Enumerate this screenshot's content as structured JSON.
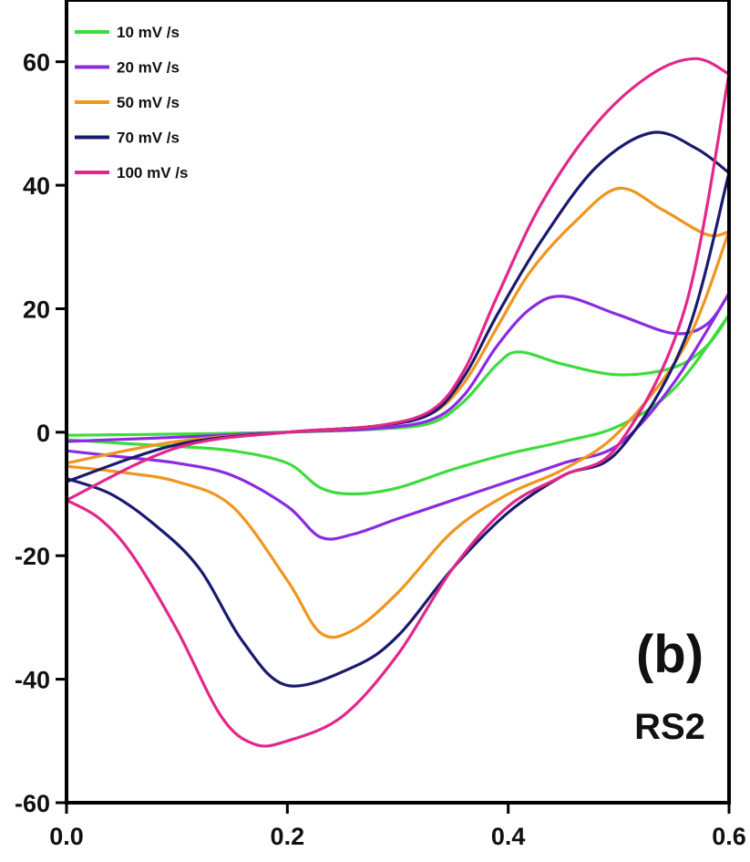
{
  "chart_data": {
    "type": "line",
    "title": "",
    "xlabel": "",
    "ylabel": "",
    "xlim": [
      0.0,
      0.6
    ],
    "ylim": [
      -60,
      70
    ],
    "x_ticks": [
      0.0,
      0.2,
      0.4,
      0.6
    ],
    "x_tick_labels": [
      "0.0",
      "0.2",
      "0.4",
      "0.6"
    ],
    "y_ticks": [
      -60,
      -40,
      -20,
      0,
      20,
      40,
      60
    ],
    "y_tick_labels": [
      "-60",
      "-40",
      "-20",
      "0",
      "20",
      "40",
      "60"
    ],
    "grid": false,
    "legend_position": "top-left",
    "annotations": [
      "(b)",
      "RS2"
    ],
    "series": [
      {
        "name": "10 mV /s",
        "color": "#3ddc3d",
        "forward": [
          [
            0.0,
            -0.5
          ],
          [
            0.1,
            -0.3
          ],
          [
            0.2,
            0.0
          ],
          [
            0.28,
            0.5
          ],
          [
            0.33,
            1.5
          ],
          [
            0.36,
            5
          ],
          [
            0.39,
            11
          ],
          [
            0.41,
            13
          ],
          [
            0.45,
            11
          ],
          [
            0.5,
            9.3
          ],
          [
            0.55,
            10.5
          ],
          [
            0.58,
            14
          ],
          [
            0.6,
            19
          ]
        ],
        "reverse": [
          [
            0.6,
            19
          ],
          [
            0.55,
            7
          ],
          [
            0.5,
            1
          ],
          [
            0.45,
            -1.5
          ],
          [
            0.4,
            -3.5
          ],
          [
            0.35,
            -6
          ],
          [
            0.3,
            -9
          ],
          [
            0.26,
            -10
          ],
          [
            0.23,
            -9
          ],
          [
            0.2,
            -5
          ],
          [
            0.15,
            -3
          ],
          [
            0.1,
            -2.3
          ],
          [
            0.05,
            -1.8
          ],
          [
            0.0,
            -1.2
          ]
        ]
      },
      {
        "name": "20 mV /s",
        "color": "#8a2be2",
        "forward": [
          [
            0.0,
            -1.5
          ],
          [
            0.1,
            -0.8
          ],
          [
            0.2,
            0.0
          ],
          [
            0.28,
            0.6
          ],
          [
            0.33,
            2
          ],
          [
            0.36,
            6
          ],
          [
            0.39,
            14
          ],
          [
            0.42,
            20
          ],
          [
            0.45,
            22
          ],
          [
            0.5,
            19
          ],
          [
            0.55,
            16
          ],
          [
            0.58,
            17.5
          ],
          [
            0.6,
            22.5
          ]
        ],
        "reverse": [
          [
            0.6,
            22.5
          ],
          [
            0.55,
            8
          ],
          [
            0.5,
            -2
          ],
          [
            0.45,
            -5
          ],
          [
            0.4,
            -8
          ],
          [
            0.35,
            -11
          ],
          [
            0.3,
            -14
          ],
          [
            0.26,
            -16.5
          ],
          [
            0.23,
            -17
          ],
          [
            0.2,
            -12
          ],
          [
            0.15,
            -7
          ],
          [
            0.1,
            -5
          ],
          [
            0.05,
            -4
          ],
          [
            0.0,
            -3
          ]
        ]
      },
      {
        "name": "50 mV /s",
        "color": "#f0951e",
        "forward": [
          [
            0.0,
            -5
          ],
          [
            0.1,
            -1.5
          ],
          [
            0.2,
            0.0
          ],
          [
            0.28,
            1
          ],
          [
            0.33,
            3
          ],
          [
            0.36,
            8
          ],
          [
            0.39,
            17
          ],
          [
            0.42,
            26
          ],
          [
            0.46,
            34
          ],
          [
            0.5,
            39.5
          ],
          [
            0.54,
            36
          ],
          [
            0.58,
            32
          ],
          [
            0.6,
            32.5
          ]
        ],
        "reverse": [
          [
            0.6,
            32.5
          ],
          [
            0.56,
            14
          ],
          [
            0.5,
            0
          ],
          [
            0.45,
            -6
          ],
          [
            0.4,
            -10
          ],
          [
            0.35,
            -16
          ],
          [
            0.3,
            -26
          ],
          [
            0.26,
            -32
          ],
          [
            0.23,
            -32.5
          ],
          [
            0.2,
            -24
          ],
          [
            0.15,
            -12
          ],
          [
            0.1,
            -8
          ],
          [
            0.05,
            -6.5
          ],
          [
            0.0,
            -5.5
          ]
        ]
      },
      {
        "name": "70 mV /s",
        "color": "#1a1a6e",
        "forward": [
          [
            0.0,
            -8
          ],
          [
            0.1,
            -2
          ],
          [
            0.2,
            0.0
          ],
          [
            0.28,
            1
          ],
          [
            0.33,
            3
          ],
          [
            0.36,
            9
          ],
          [
            0.39,
            19
          ],
          [
            0.43,
            31
          ],
          [
            0.48,
            43
          ],
          [
            0.53,
            48.5
          ],
          [
            0.57,
            46
          ],
          [
            0.6,
            42
          ]
        ],
        "reverse": [
          [
            0.6,
            42
          ],
          [
            0.56,
            15
          ],
          [
            0.5,
            -3
          ],
          [
            0.45,
            -7
          ],
          [
            0.4,
            -13
          ],
          [
            0.35,
            -22
          ],
          [
            0.3,
            -33
          ],
          [
            0.26,
            -38
          ],
          [
            0.2,
            -41
          ],
          [
            0.16,
            -34
          ],
          [
            0.12,
            -22
          ],
          [
            0.08,
            -15
          ],
          [
            0.04,
            -10
          ],
          [
            0.0,
            -7.5
          ]
        ]
      },
      {
        "name": "100 mV /s",
        "color": "#e3278a",
        "forward": [
          [
            0.0,
            -11
          ],
          [
            0.1,
            -2.5
          ],
          [
            0.2,
            0.0
          ],
          [
            0.28,
            1
          ],
          [
            0.33,
            3.5
          ],
          [
            0.36,
            10
          ],
          [
            0.39,
            22
          ],
          [
            0.43,
            37
          ],
          [
            0.48,
            50
          ],
          [
            0.53,
            58
          ],
          [
            0.57,
            60.5
          ],
          [
            0.6,
            58
          ]
        ],
        "reverse": [
          [
            0.6,
            58
          ],
          [
            0.56,
            20
          ],
          [
            0.5,
            -2
          ],
          [
            0.45,
            -7
          ],
          [
            0.4,
            -12
          ],
          [
            0.35,
            -22
          ],
          [
            0.3,
            -36
          ],
          [
            0.25,
            -46
          ],
          [
            0.2,
            -50
          ],
          [
            0.17,
            -50.5
          ],
          [
            0.14,
            -46
          ],
          [
            0.1,
            -32
          ],
          [
            0.06,
            -20
          ],
          [
            0.03,
            -14
          ],
          [
            0.0,
            -11
          ]
        ]
      }
    ]
  }
}
